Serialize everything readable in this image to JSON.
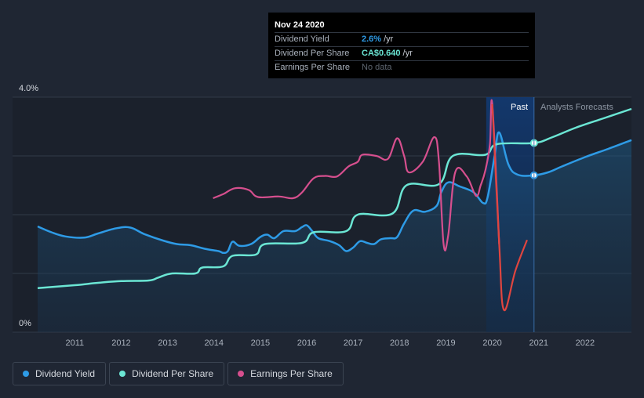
{
  "tooltip": {
    "date": "Nov 24 2020",
    "rows": [
      {
        "label": "Dividend Yield",
        "value": "2.6%",
        "unit": "/yr"
      },
      {
        "label": "Dividend Per Share",
        "value": "CA$0.640",
        "unit": "/yr"
      },
      {
        "label": "Earnings Per Share",
        "value": "No data"
      }
    ]
  },
  "regions": {
    "past": "Past",
    "forecast": "Analysts Forecasts"
  },
  "legend": [
    {
      "label": "Dividend Yield",
      "color": "#2e9be6"
    },
    {
      "label": "Dividend Per Share",
      "color": "#6be6d4"
    },
    {
      "label": "Earnings Per Share",
      "color": "#d64f8e"
    }
  ],
  "chart_data": {
    "type": "line",
    "ylabels": [
      "4.0%",
      "0%"
    ],
    "ylim": [
      0,
      4
    ],
    "xlim": [
      2010.2,
      2023.0
    ],
    "xticks": [
      "2011",
      "2012",
      "2013",
      "2014",
      "2015",
      "2016",
      "2017",
      "2018",
      "2019",
      "2020",
      "2021",
      "2022"
    ],
    "past_end": 2020.9,
    "highlight_start": 2019.87,
    "grid": true,
    "series": [
      {
        "name": "Dividend Yield",
        "color": "#2e9be6",
        "points": [
          [
            2010.2,
            1.8
          ],
          [
            2010.5,
            1.7
          ],
          [
            2010.8,
            1.63
          ],
          [
            2011.2,
            1.61
          ],
          [
            2011.5,
            1.68
          ],
          [
            2011.9,
            1.77
          ],
          [
            2012.2,
            1.78
          ],
          [
            2012.5,
            1.67
          ],
          [
            2012.9,
            1.56
          ],
          [
            2013.2,
            1.5
          ],
          [
            2013.5,
            1.48
          ],
          [
            2013.8,
            1.42
          ],
          [
            2014.1,
            1.38
          ],
          [
            2014.2,
            1.35
          ],
          [
            2014.3,
            1.38
          ],
          [
            2014.4,
            1.54
          ],
          [
            2014.55,
            1.47
          ],
          [
            2014.8,
            1.5
          ],
          [
            2015.0,
            1.62
          ],
          [
            2015.15,
            1.66
          ],
          [
            2015.3,
            1.6
          ],
          [
            2015.5,
            1.72
          ],
          [
            2015.75,
            1.72
          ],
          [
            2015.9,
            1.79
          ],
          [
            2016.0,
            1.82
          ],
          [
            2016.12,
            1.72
          ],
          [
            2016.25,
            1.6
          ],
          [
            2016.5,
            1.55
          ],
          [
            2016.7,
            1.48
          ],
          [
            2016.85,
            1.38
          ],
          [
            2017.0,
            1.44
          ],
          [
            2017.15,
            1.55
          ],
          [
            2017.3,
            1.52
          ],
          [
            2017.45,
            1.5
          ],
          [
            2017.6,
            1.58
          ],
          [
            2017.8,
            1.6
          ],
          [
            2017.95,
            1.62
          ],
          [
            2018.1,
            1.85
          ],
          [
            2018.3,
            2.07
          ],
          [
            2018.55,
            2.05
          ],
          [
            2018.8,
            2.15
          ],
          [
            2018.9,
            2.38
          ],
          [
            2019.05,
            2.55
          ],
          [
            2019.3,
            2.48
          ],
          [
            2019.6,
            2.38
          ],
          [
            2019.8,
            2.2
          ],
          [
            2019.9,
            2.3
          ],
          [
            2020.05,
            3.0
          ],
          [
            2020.15,
            3.4
          ],
          [
            2020.35,
            2.85
          ],
          [
            2020.55,
            2.68
          ],
          [
            2020.9,
            2.67
          ],
          [
            2021.2,
            2.72
          ],
          [
            2021.5,
            2.82
          ],
          [
            2022.0,
            2.98
          ],
          [
            2022.5,
            3.12
          ],
          [
            2023.0,
            3.27
          ]
        ]
      },
      {
        "name": "Dividend Per Share",
        "color": "#6be6d4",
        "points": [
          [
            2010.2,
            0.75
          ],
          [
            2011.0,
            0.8
          ],
          [
            2011.5,
            0.84
          ],
          [
            2012.0,
            0.87
          ],
          [
            2012.6,
            0.88
          ],
          [
            2012.8,
            0.93
          ],
          [
            2013.1,
            1.0
          ],
          [
            2013.6,
            1.0
          ],
          [
            2013.75,
            1.1
          ],
          [
            2014.2,
            1.12
          ],
          [
            2014.4,
            1.3
          ],
          [
            2014.9,
            1.32
          ],
          [
            2015.1,
            1.5
          ],
          [
            2015.9,
            1.52
          ],
          [
            2016.15,
            1.7
          ],
          [
            2016.85,
            1.72
          ],
          [
            2017.1,
            2.0
          ],
          [
            2017.85,
            2.02
          ],
          [
            2018.15,
            2.5
          ],
          [
            2018.85,
            2.52
          ],
          [
            2019.15,
            3.0
          ],
          [
            2019.85,
            3.02
          ],
          [
            2020.1,
            3.2
          ],
          [
            2020.9,
            3.22
          ],
          [
            2021.3,
            3.32
          ],
          [
            2021.8,
            3.48
          ],
          [
            2022.4,
            3.64
          ],
          [
            2023.0,
            3.8
          ]
        ]
      },
      {
        "name": "Earnings Per Share",
        "color": "#d64f8e",
        "points": [
          [
            2013.98,
            2.28
          ],
          [
            2014.2,
            2.35
          ],
          [
            2014.45,
            2.45
          ],
          [
            2014.75,
            2.42
          ],
          [
            2014.95,
            2.3
          ],
          [
            2015.4,
            2.31
          ],
          [
            2015.7,
            2.28
          ],
          [
            2015.9,
            2.38
          ],
          [
            2016.15,
            2.62
          ],
          [
            2016.4,
            2.66
          ],
          [
            2016.65,
            2.65
          ],
          [
            2016.9,
            2.82
          ],
          [
            2017.1,
            2.9
          ],
          [
            2017.2,
            3.02
          ],
          [
            2017.5,
            3.0
          ],
          [
            2017.75,
            2.95
          ],
          [
            2017.95,
            3.3
          ],
          [
            2018.1,
            3.0
          ],
          [
            2018.2,
            2.72
          ],
          [
            2018.5,
            2.9
          ],
          [
            2018.75,
            3.32
          ],
          [
            2018.85,
            2.9
          ],
          [
            2018.95,
            1.5
          ],
          [
            2019.05,
            1.65
          ],
          [
            2019.2,
            2.72
          ],
          [
            2019.45,
            2.65
          ],
          [
            2019.65,
            2.32
          ],
          [
            2019.75,
            2.5
          ],
          [
            2019.85,
            2.75
          ],
          [
            2019.95,
            3.2
          ],
          [
            2020.0,
            3.88
          ],
          [
            2020.15,
            1.5
          ],
          [
            2020.25,
            0.38
          ],
          [
            2020.5,
            1.05
          ],
          [
            2020.75,
            1.57
          ]
        ]
      }
    ]
  }
}
